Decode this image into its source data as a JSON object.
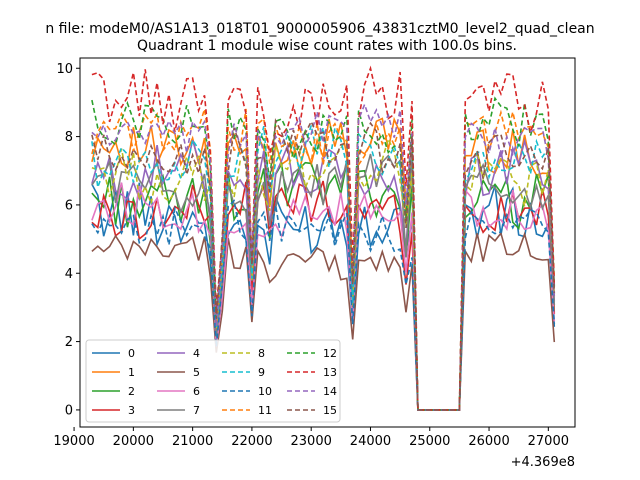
{
  "chart_data": {
    "type": "line",
    "suptitle": "n file: modeM0/AS1A13_018T01_9000005906_43831cztM0_level2_quad_clean",
    "title": "Quadrant 1 module wise count rates with 100.0s bins.",
    "xlabel": "",
    "ylabel": "",
    "x_offset_label": "+4.369e8",
    "xlim": [
      19100,
      27450
    ],
    "ylim": [
      -0.5,
      10.3
    ],
    "xticks": [
      19000,
      20000,
      21000,
      22000,
      23000,
      24000,
      25000,
      26000,
      27000
    ],
    "yticks": [
      0,
      2,
      4,
      6,
      8,
      10
    ],
    "grid": false,
    "legend": {
      "placement": "lower-left",
      "columns": 4
    },
    "x": [
      19300,
      19400,
      19500,
      19600,
      19700,
      19800,
      19900,
      20000,
      20100,
      20200,
      20300,
      20400,
      20500,
      20600,
      20700,
      20800,
      20900,
      21000,
      21100,
      21200,
      21300,
      21400,
      21500,
      21600,
      21700,
      21800,
      21900,
      22000,
      22100,
      22200,
      22300,
      22400,
      22500,
      22600,
      22700,
      22800,
      22900,
      23000,
      23100,
      23200,
      23300,
      23400,
      23500,
      23600,
      23700,
      23800,
      23900,
      24000,
      24100,
      24200,
      24300,
      24400,
      24500,
      24600,
      24700,
      24800,
      24900,
      25000,
      25100,
      25200,
      25300,
      25400,
      25500,
      25600,
      25700,
      25800,
      25900,
      26000,
      26100,
      26200,
      26300,
      26400,
      26500,
      26600,
      26700,
      26800,
      26900,
      27000,
      27100
    ],
    "series": [
      {
        "name": "0",
        "color": "#1f77b4",
        "dash": false,
        "base": 5.6,
        "amp": 0.9,
        "seed": 1
      },
      {
        "name": "1",
        "color": "#ff7f0e",
        "dash": false,
        "base": 7.7,
        "amp": 0.7,
        "seed": 2
      },
      {
        "name": "2",
        "color": "#2ca02c",
        "dash": false,
        "base": 6.3,
        "amp": 0.8,
        "seed": 3
      },
      {
        "name": "3",
        "color": "#d62728",
        "dash": false,
        "base": 5.9,
        "amp": 0.7,
        "seed": 4
      },
      {
        "name": "4",
        "color": "#9467bd",
        "dash": false,
        "base": 6.9,
        "amp": 0.8,
        "seed": 5
      },
      {
        "name": "5",
        "color": "#8c564b",
        "dash": false,
        "base": 4.5,
        "amp": 0.5,
        "seed": 6
      },
      {
        "name": "6",
        "color": "#e377c2",
        "dash": false,
        "base": 5.8,
        "amp": 0.7,
        "seed": 7
      },
      {
        "name": "7",
        "color": "#7f7f7f",
        "dash": false,
        "base": 6.6,
        "amp": 0.7,
        "seed": 8
      },
      {
        "name": "8",
        "color": "#bcbd22",
        "dash": true,
        "base": 7.0,
        "amp": 0.8,
        "seed": 9
      },
      {
        "name": "9",
        "color": "#17becf",
        "dash": true,
        "base": 7.4,
        "amp": 0.7,
        "seed": 10
      },
      {
        "name": "10",
        "color": "#1f77b4",
        "dash": true,
        "base": 5.3,
        "amp": 0.6,
        "seed": 11
      },
      {
        "name": "11",
        "color": "#ff7f0e",
        "dash": true,
        "base": 8.0,
        "amp": 0.7,
        "seed": 12
      },
      {
        "name": "12",
        "color": "#2ca02c",
        "dash": true,
        "base": 8.2,
        "amp": 0.7,
        "seed": 13
      },
      {
        "name": "13",
        "color": "#d62728",
        "dash": true,
        "base": 9.0,
        "amp": 0.9,
        "seed": 14
      },
      {
        "name": "14",
        "color": "#9467bd",
        "dash": true,
        "base": 8.1,
        "amp": 0.6,
        "seed": 15
      },
      {
        "name": "15",
        "color": "#8c564b",
        "dash": true,
        "base": 7.6,
        "amp": 0.7,
        "seed": 16
      }
    ]
  }
}
